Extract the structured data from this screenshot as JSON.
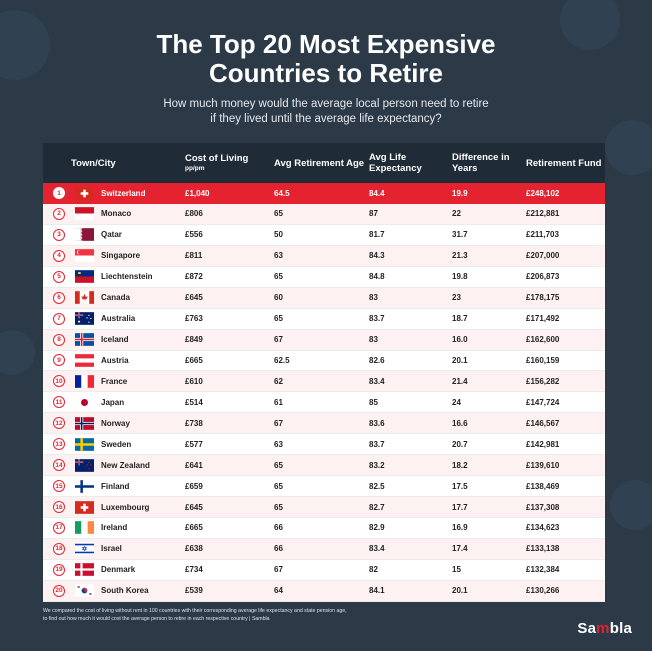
{
  "header": {
    "title_line1": "The Top 20 Most Expensive",
    "title_line2": "Countries to Retire",
    "subtitle_line1": "How much money would the average local person need to retire",
    "subtitle_line2": "if they lived until the average life expectancy?"
  },
  "chart_data": {
    "type": "table",
    "columns": {
      "town": "Town/City",
      "cost": "Cost of Living",
      "cost_unit": "pp/pm",
      "age": "Avg Retirement Age",
      "life": "Avg Life Expectancy",
      "diff": "Difference in Years",
      "fund": "Retirement Fund"
    },
    "rows": [
      {
        "rank": "1",
        "country": "Switzerland",
        "cost": "£1,040",
        "age": "64.5",
        "life": "84.4",
        "diff": "19.9",
        "fund": "£248,102"
      },
      {
        "rank": "2",
        "country": "Monaco",
        "cost": "£806",
        "age": "65",
        "life": "87",
        "diff": "22",
        "fund": "£212,881"
      },
      {
        "rank": "3",
        "country": "Qatar",
        "cost": "£556",
        "age": "50",
        "life": "81.7",
        "diff": "31.7",
        "fund": "£211,703"
      },
      {
        "rank": "4",
        "country": "Singapore",
        "cost": "£811",
        "age": "63",
        "life": "84.3",
        "diff": "21.3",
        "fund": "£207,000"
      },
      {
        "rank": "5",
        "country": "Liechtenstein",
        "cost": "£872",
        "age": "65",
        "life": "84.8",
        "diff": "19.8",
        "fund": "£206,873"
      },
      {
        "rank": "6",
        "country": "Canada",
        "cost": "£645",
        "age": "60",
        "life": "83",
        "diff": "23",
        "fund": "£178,175"
      },
      {
        "rank": "7",
        "country": "Australia",
        "cost": "£763",
        "age": "65",
        "life": "83.7",
        "diff": "18.7",
        "fund": "£171,492"
      },
      {
        "rank": "8",
        "country": "Iceland",
        "cost": "£849",
        "age": "67",
        "life": "83",
        "diff": "16.0",
        "fund": "£162,600"
      },
      {
        "rank": "9",
        "country": "Austria",
        "cost": "£665",
        "age": "62.5",
        "life": "82.6",
        "diff": "20.1",
        "fund": "£160,159"
      },
      {
        "rank": "10",
        "country": "France",
        "cost": "£610",
        "age": "62",
        "life": "83.4",
        "diff": "21.4",
        "fund": "£156,282"
      },
      {
        "rank": "11",
        "country": "Japan",
        "cost": "£514",
        "age": "61",
        "life": "85",
        "diff": "24",
        "fund": "£147,724"
      },
      {
        "rank": "12",
        "country": "Norway",
        "cost": "£738",
        "age": "67",
        "life": "83.6",
        "diff": "16.6",
        "fund": "£146,567"
      },
      {
        "rank": "13",
        "country": "Sweden",
        "cost": "£577",
        "age": "63",
        "life": "83.7",
        "diff": "20.7",
        "fund": "£142,981"
      },
      {
        "rank": "14",
        "country": "New Zealand",
        "cost": "£641",
        "age": "65",
        "life": "83.2",
        "diff": "18.2",
        "fund": "£139,610"
      },
      {
        "rank": "15",
        "country": "Finland",
        "cost": "£659",
        "age": "65",
        "life": "82.5",
        "diff": "17.5",
        "fund": "£138,469"
      },
      {
        "rank": "16",
        "country": "Luxembourg",
        "cost": "£645",
        "age": "65",
        "life": "82.7",
        "diff": "17.7",
        "fund": "£137,308"
      },
      {
        "rank": "17",
        "country": "Ireland",
        "cost": "£665",
        "age": "66",
        "life": "82.9",
        "diff": "16.9",
        "fund": "£134,623"
      },
      {
        "rank": "18",
        "country": "Israel",
        "cost": "£638",
        "age": "66",
        "life": "83.4",
        "diff": "17.4",
        "fund": "£133,138"
      },
      {
        "rank": "19",
        "country": "Denmark",
        "cost": "£734",
        "age": "67",
        "life": "82",
        "diff": "15",
        "fund": "£132,384"
      },
      {
        "rank": "20",
        "country": "South Korea",
        "cost": "£539",
        "age": "64",
        "life": "84.1",
        "diff": "20.1",
        "fund": "£130,266"
      }
    ]
  },
  "footer": {
    "note_line1": "We compared the cost of living without rent in 100 countries with their corresponding average life expectancy and state pension age,",
    "note_line2": "to find out how much it would cost the average person to retire in each respective country | Sambla",
    "brand_a": "Sa",
    "brand_b": "m",
    "brand_c": "bla"
  },
  "colors": {
    "background": "#2c3a47",
    "header_row": "#1f2b37",
    "highlight": "#e52330",
    "alt_row": "#fdf1f1"
  },
  "flags": [
    "ch",
    "mc",
    "qa",
    "sg",
    "li",
    "ca",
    "au",
    "is",
    "at",
    "fr",
    "jp",
    "no",
    "se",
    "nz",
    "fi",
    "lu",
    "ie",
    "il",
    "dk",
    "kr"
  ]
}
